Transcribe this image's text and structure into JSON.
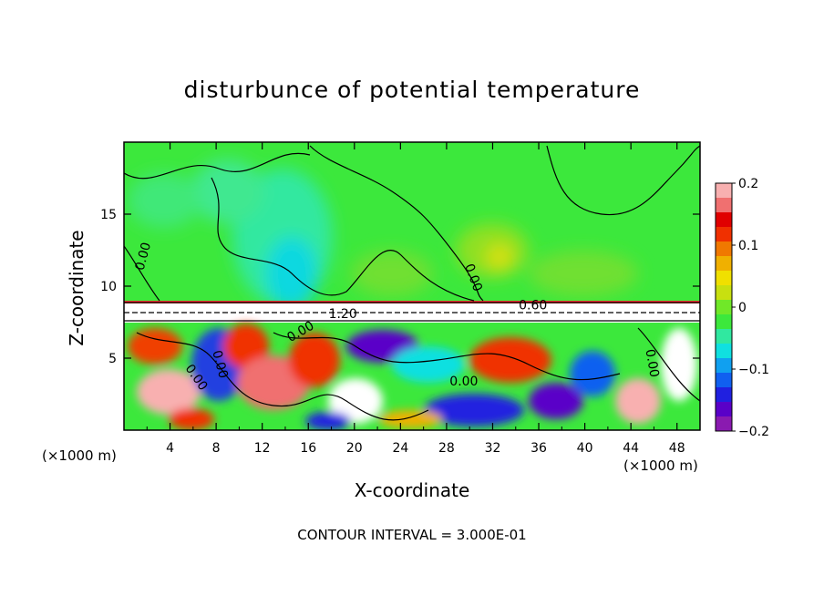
{
  "chart_data": {
    "type": "heatmap",
    "title": "disturbunce of potential temperature",
    "xlabel": "X-coordinate",
    "ylabel": "Z-coordinate",
    "x_unit_left": "(×1000 m)",
    "x_unit_right": "(×1000 m)",
    "footer": "CONTOUR INTERVAL = 3.000E-01",
    "xlim": [
      0,
      50
    ],
    "ylim": [
      0,
      20
    ],
    "x_ticks": [
      "4",
      "8",
      "12",
      "16",
      "20",
      "24",
      "28",
      "32",
      "36",
      "40",
      "44",
      "48"
    ],
    "x_tick_values": [
      4,
      8,
      12,
      16,
      20,
      24,
      28,
      32,
      36,
      40,
      44,
      48
    ],
    "y_ticks": [
      "5",
      "10",
      "15"
    ],
    "y_tick_values": [
      5,
      10,
      15
    ],
    "colorbar": {
      "ticks": [
        "0.2",
        "0.1",
        "0",
        "−0.1",
        "−0.2"
      ],
      "tick_values": [
        0.2,
        0.1,
        0,
        -0.1,
        -0.2
      ],
      "range": [
        -0.2,
        0.2
      ],
      "colors": [
        "#8a1ab0",
        "#5a00c8",
        "#2020e0",
        "#1060f0",
        "#10a0f0",
        "#10e0e0",
        "#30e8a0",
        "#3ce83c",
        "#70e828",
        "#c8e010",
        "#f0e000",
        "#f0b000",
        "#f07800",
        "#f03000",
        "#e00000",
        "#f07070",
        "#f8b0b0"
      ]
    },
    "contour_labels": [
      {
        "text": "0.00",
        "x": 2,
        "y": 12,
        "rot": -75
      },
      {
        "text": "0.00",
        "x": 30,
        "y": 10.5,
        "rot": 70
      },
      {
        "text": "0.60",
        "x": 35.5,
        "y": 8.4,
        "rot": 0
      },
      {
        "text": "1.20",
        "x": 19,
        "y": 7.8,
        "rot": 0
      },
      {
        "text": "0.00",
        "x": 15.5,
        "y": 6.6,
        "rot": -30
      },
      {
        "text": "0.00",
        "x": 8,
        "y": 4.5,
        "rot": 75
      },
      {
        "text": "0.00",
        "x": 6,
        "y": 3.5,
        "rot": 55
      },
      {
        "text": "0.00",
        "x": 29.5,
        "y": 3.1,
        "rot": 0
      },
      {
        "text": "0.00",
        "x": 45.5,
        "y": 4.6,
        "rot": 80
      }
    ]
  }
}
